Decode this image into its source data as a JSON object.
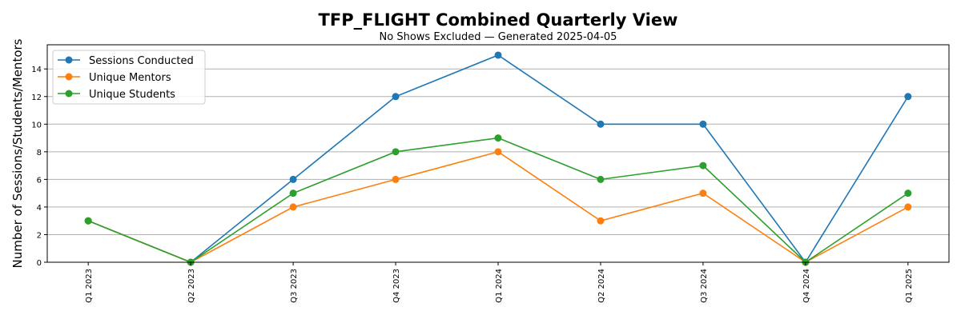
{
  "chart_data": {
    "type": "line",
    "title": "TFP_FLIGHT Combined Quarterly View",
    "subtitle": "No Shows Excluded — Generated 2025-04-05",
    "xlabel": "",
    "ylabel": "Number of Sessions/Students/Mentors",
    "categories": [
      "Q1 2023",
      "Q2 2023",
      "Q3 2023",
      "Q4 2023",
      "Q1 2024",
      "Q2 2024",
      "Q3 2024",
      "Q4 2024",
      "Q1 2025"
    ],
    "ylim": [
      0,
      15.75
    ],
    "yticks": [
      0,
      2,
      4,
      6,
      8,
      10,
      12,
      14
    ],
    "grid": "horizontal",
    "legend": "top-left",
    "series": [
      {
        "name": "Sessions Conducted",
        "color": "#1f77b4",
        "values": [
          3,
          0,
          6,
          12,
          15,
          10,
          10,
          0,
          12
        ]
      },
      {
        "name": "Unique Mentors",
        "color": "#ff7f0e",
        "values": [
          3,
          0,
          4,
          6,
          8,
          3,
          5,
          0,
          4
        ]
      },
      {
        "name": "Unique Students",
        "color": "#2ca02c",
        "values": [
          3,
          0,
          5,
          8,
          9,
          6,
          7,
          0,
          5
        ]
      }
    ]
  }
}
